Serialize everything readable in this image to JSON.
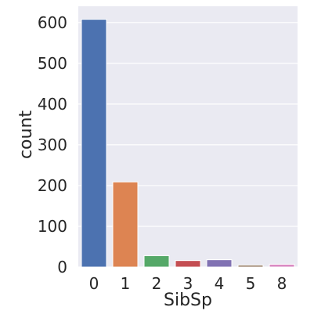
{
  "chart_data": {
    "type": "bar",
    "title": "",
    "xlabel": "SibSp",
    "ylabel": "count",
    "categories": [
      "0",
      "1",
      "2",
      "3",
      "4",
      "5",
      "8"
    ],
    "values": [
      608,
      209,
      28,
      16,
      18,
      5,
      7
    ],
    "ylim": [
      0,
      640
    ],
    "yticks": [
      0,
      100,
      200,
      300,
      400,
      500,
      600
    ],
    "grid": true,
    "colors": [
      "#4C72B0",
      "#DD8452",
      "#55A868",
      "#C44E52",
      "#8172B3",
      "#937860",
      "#DA8BC3"
    ],
    "background": "#EAEAF2"
  }
}
